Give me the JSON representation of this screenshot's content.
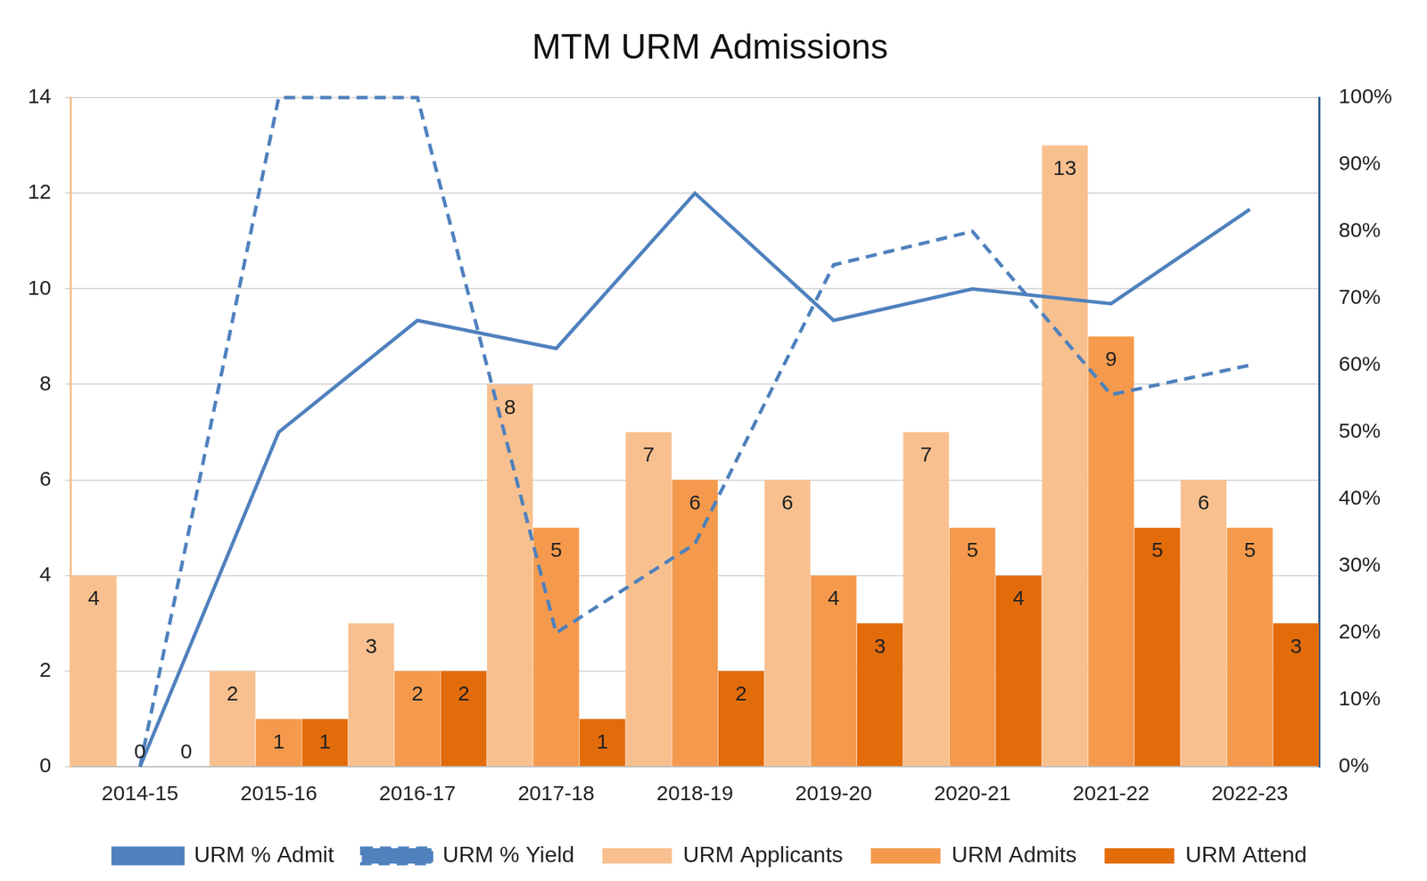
{
  "chart_data": {
    "type": "bar",
    "title": "MTM URM Admissions",
    "categories": [
      "2014-15",
      "2015-16",
      "2016-17",
      "2017-18",
      "2018-19",
      "2019-20",
      "2020-21",
      "2021-22",
      "2022-23"
    ],
    "series": [
      {
        "name": "URM Applicants",
        "type": "bar",
        "color": "#f9c08f",
        "data_labels": true,
        "values": [
          4,
          2,
          3,
          8,
          7,
          6,
          7,
          13,
          6
        ]
      },
      {
        "name": "URM Admits",
        "type": "bar",
        "color": "#f59a4c",
        "data_labels": true,
        "values": [
          0,
          1,
          2,
          5,
          6,
          4,
          5,
          9,
          5
        ]
      },
      {
        "name": "URM Attend",
        "type": "bar",
        "color": "#e36c0a",
        "data_labels": true,
        "values": [
          0,
          1,
          2,
          1,
          2,
          3,
          4,
          5,
          3
        ]
      },
      {
        "name": "URM % Admit",
        "type": "line",
        "axis": "y2",
        "color": "#4f81bd",
        "line_style": "solid",
        "marker": "none",
        "values": [
          0,
          50,
          66.7,
          62.5,
          85.7,
          66.7,
          71.4,
          69.2,
          83.3
        ]
      },
      {
        "name": "URM % Yield",
        "type": "line",
        "axis": "y2",
        "color": "#4f81bd",
        "line_style": "dashed",
        "marker": "none",
        "values": [
          0,
          100,
          100,
          20,
          33.3,
          75,
          80,
          55.6,
          60
        ]
      }
    ],
    "ylim": [
      0,
      14
    ],
    "yticks": [
      0,
      2,
      4,
      6,
      8,
      10,
      12,
      14
    ],
    "y2lim": [
      0,
      100
    ],
    "y2ticks": [
      {
        "value": 0,
        "label": "0%"
      },
      {
        "value": 10,
        "label": "10%"
      },
      {
        "value": 20,
        "label": "20%"
      },
      {
        "value": 30,
        "label": "30%"
      },
      {
        "value": 40,
        "label": "40%"
      },
      {
        "value": 50,
        "label": "50%"
      },
      {
        "value": 60,
        "label": "60%"
      },
      {
        "value": 70,
        "label": "70%"
      },
      {
        "value": 80,
        "label": "80%"
      },
      {
        "value": 90,
        "label": "90%"
      },
      {
        "value": 100,
        "label": "100%"
      }
    ],
    "grid": true,
    "legend": "bottom"
  }
}
